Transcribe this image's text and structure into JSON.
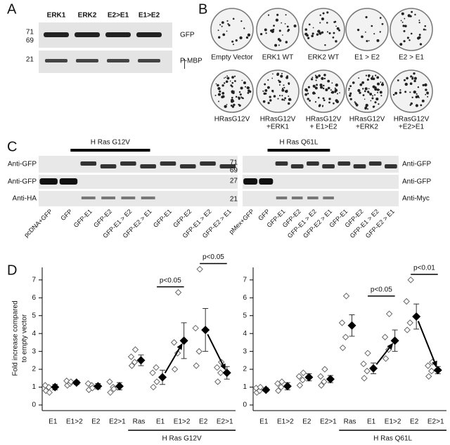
{
  "panel_a": {
    "letter": "A",
    "lanes": [
      "ERK1",
      "ERK2",
      "E2>E1",
      "E1>E2"
    ],
    "markers": [
      "71",
      "69",
      "21"
    ],
    "bands": [
      "GFP",
      "P-MBP"
    ]
  },
  "panel_b": {
    "letter": "B",
    "row1": [
      "Empty Vector",
      "ERK1 WT",
      "ERK2 WT",
      "E1 > E2",
      "E2 > E1"
    ],
    "row2": [
      [
        "HRasG12V"
      ],
      [
        "HRasG12V",
        "+ERK1"
      ],
      [
        "HRasG12V",
        "+ E1>E2"
      ],
      [
        "HRasG12V",
        "+ERK2"
      ],
      [
        "HRasG12V",
        "+E2>E1"
      ]
    ]
  },
  "panel_c": {
    "letter": "C",
    "left": {
      "bar_label": "H Ras G12V",
      "rows": [
        "Anti-GFP",
        "Anti-GFP",
        "Anti-HA"
      ],
      "lanes": [
        "pcDNA+GFP",
        "GFP",
        "GFP-E1",
        "GFP-E2",
        "GFP-E1 > E2",
        "GFP-E2 > E1",
        "GFP-E1",
        "GFP-E2",
        "GFP-E1 > E2",
        "GFP-E2 > E1"
      ]
    },
    "right": {
      "bar_label": "H Ras Q61L",
      "markers": [
        "71",
        "69",
        "27",
        "21"
      ],
      "rows": [
        "Anti-GFP",
        "Anti-GFP",
        "Anti-Myc"
      ],
      "lanes": [
        "pMex+GFP",
        "GFP",
        "GFP-E1",
        "GFP-E2",
        "GFP-E1 > E2",
        "GFP-E2 > E1",
        "GFP-E1",
        "GFP-E2",
        "GFP-E1 > E2",
        "GFP-E2 > E1"
      ]
    }
  },
  "panel_d": {
    "letter": "D",
    "ylabel": [
      "Fold increase compared",
      "to empty vector"
    ]
  },
  "chart_data": [
    {
      "type": "scatter",
      "categories": [
        "E1",
        "E1>2",
        "E2",
        "E2>1",
        "Ras",
        "E1",
        "E1>2",
        "E2",
        "E2>1"
      ],
      "group_label": "H Ras G12V",
      "significance": [
        "p<0.05",
        "p<0.05"
      ],
      "ylim": [
        0,
        7.7
      ],
      "yticks": [
        0,
        1,
        2,
        3,
        4,
        5,
        6,
        7
      ],
      "means": [
        1.0,
        1.25,
        1.05,
        1.05,
        2.5,
        1.55,
        3.6,
        4.2,
        1.8
      ],
      "errors": [
        0.15,
        0.1,
        0.15,
        0.2,
        0.3,
        0.4,
        1.0,
        1.2,
        0.35
      ],
      "points": [
        [
          0.8,
          1.0,
          1.1,
          0.7
        ],
        [
          1.1,
          1.2,
          1.35,
          1.3
        ],
        [
          0.85,
          1.1,
          1.2,
          0.95
        ],
        [
          0.7,
          1.0,
          1.3,
          0.9
        ],
        [
          2.2,
          2.4,
          2.7,
          3.1
        ],
        [
          1.0,
          2.1,
          1.8,
          1.3
        ],
        [
          2.0,
          2.9,
          3.5,
          6.3
        ],
        [
          2.2,
          3.0,
          4.3,
          7.6
        ],
        [
          1.3,
          1.8,
          2.1,
          2.4
        ]
      ]
    },
    {
      "type": "scatter",
      "categories": [
        "E1",
        "E1>2",
        "E2",
        "E2>1",
        "Ras",
        "E1",
        "E1>2",
        "E2",
        "E2>1"
      ],
      "group_label": "H Ras Q61L",
      "significance": [
        "p<0.05",
        "p<0.01"
      ],
      "ylim": [
        0,
        7.7
      ],
      "yticks": [
        0,
        1,
        2,
        3,
        4,
        5,
        6,
        7
      ],
      "means": [
        0.85,
        1.05,
        1.55,
        1.45,
        4.45,
        2.05,
        3.6,
        4.95,
        1.95
      ],
      "errors": [
        0.1,
        0.2,
        0.2,
        0.2,
        0.6,
        0.3,
        0.6,
        0.7,
        0.2
      ],
      "points": [
        [
          0.7,
          0.8,
          0.95,
          1.0
        ],
        [
          0.8,
          1.0,
          1.2,
          1.3
        ],
        [
          1.1,
          1.4,
          1.6,
          1.8
        ],
        [
          1.1,
          1.3,
          1.6,
          2.0
        ],
        [
          3.2,
          3.8,
          4.6,
          6.1
        ],
        [
          1.5,
          1.9,
          2.3,
          2.9
        ],
        [
          2.6,
          3.1,
          3.8,
          5.1
        ],
        [
          4.2,
          4.6,
          5.8,
          7.0
        ],
        [
          1.6,
          1.9,
          2.2,
          2.4
        ]
      ]
    }
  ]
}
